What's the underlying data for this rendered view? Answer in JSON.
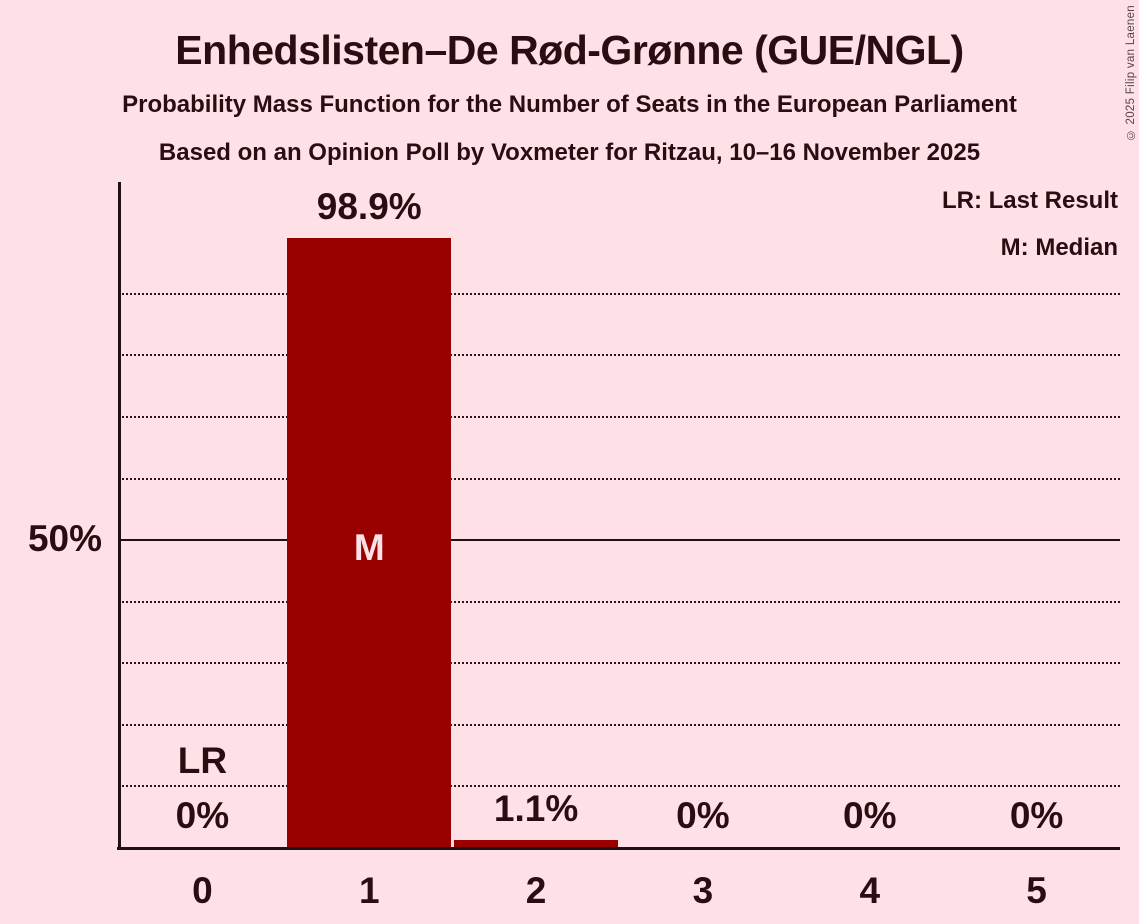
{
  "title": "Enhedslisten–De Rød-Grønne (GUE/NGL)",
  "subtitle1": "Probability Mass Function for the Number of Seats in the European Parliament",
  "subtitle2": "Based on an Opinion Poll by Voxmeter for Ritzau, 10–16 November 2025",
  "copyright": "© 2025 Filip van Laenen",
  "legend": {
    "last_result": "LR: Last Result",
    "median": "M: Median"
  },
  "chart_data": {
    "type": "bar",
    "categories": [
      "0",
      "1",
      "2",
      "3",
      "4",
      "5"
    ],
    "values": [
      0,
      98.9,
      1.1,
      0,
      0,
      0
    ],
    "bar_labels": [
      "0%",
      "98.9%",
      "1.1%",
      "0%",
      "0%",
      "0%"
    ],
    "title": "Probability Mass Function for the Number of Seats in the European Parliament",
    "xlabel": "",
    "ylabel": "",
    "ylim": [
      0,
      108
    ],
    "y_tick_label": "50%",
    "y_tick_value": 50,
    "gridlines": {
      "style": "dotted",
      "step_percent": 10,
      "solid_at_percent": 50
    },
    "legend_position": "top-right",
    "annotations": [
      {
        "label": "LR",
        "meaning": "Last Result",
        "seat_index": 0
      },
      {
        "label": "M",
        "meaning": "Median",
        "seat_index": 1
      }
    ],
    "colors": {
      "bar": "#990000",
      "background": "#fde1e6",
      "text": "#2a0d12",
      "median_text": "#fde1e6"
    }
  }
}
